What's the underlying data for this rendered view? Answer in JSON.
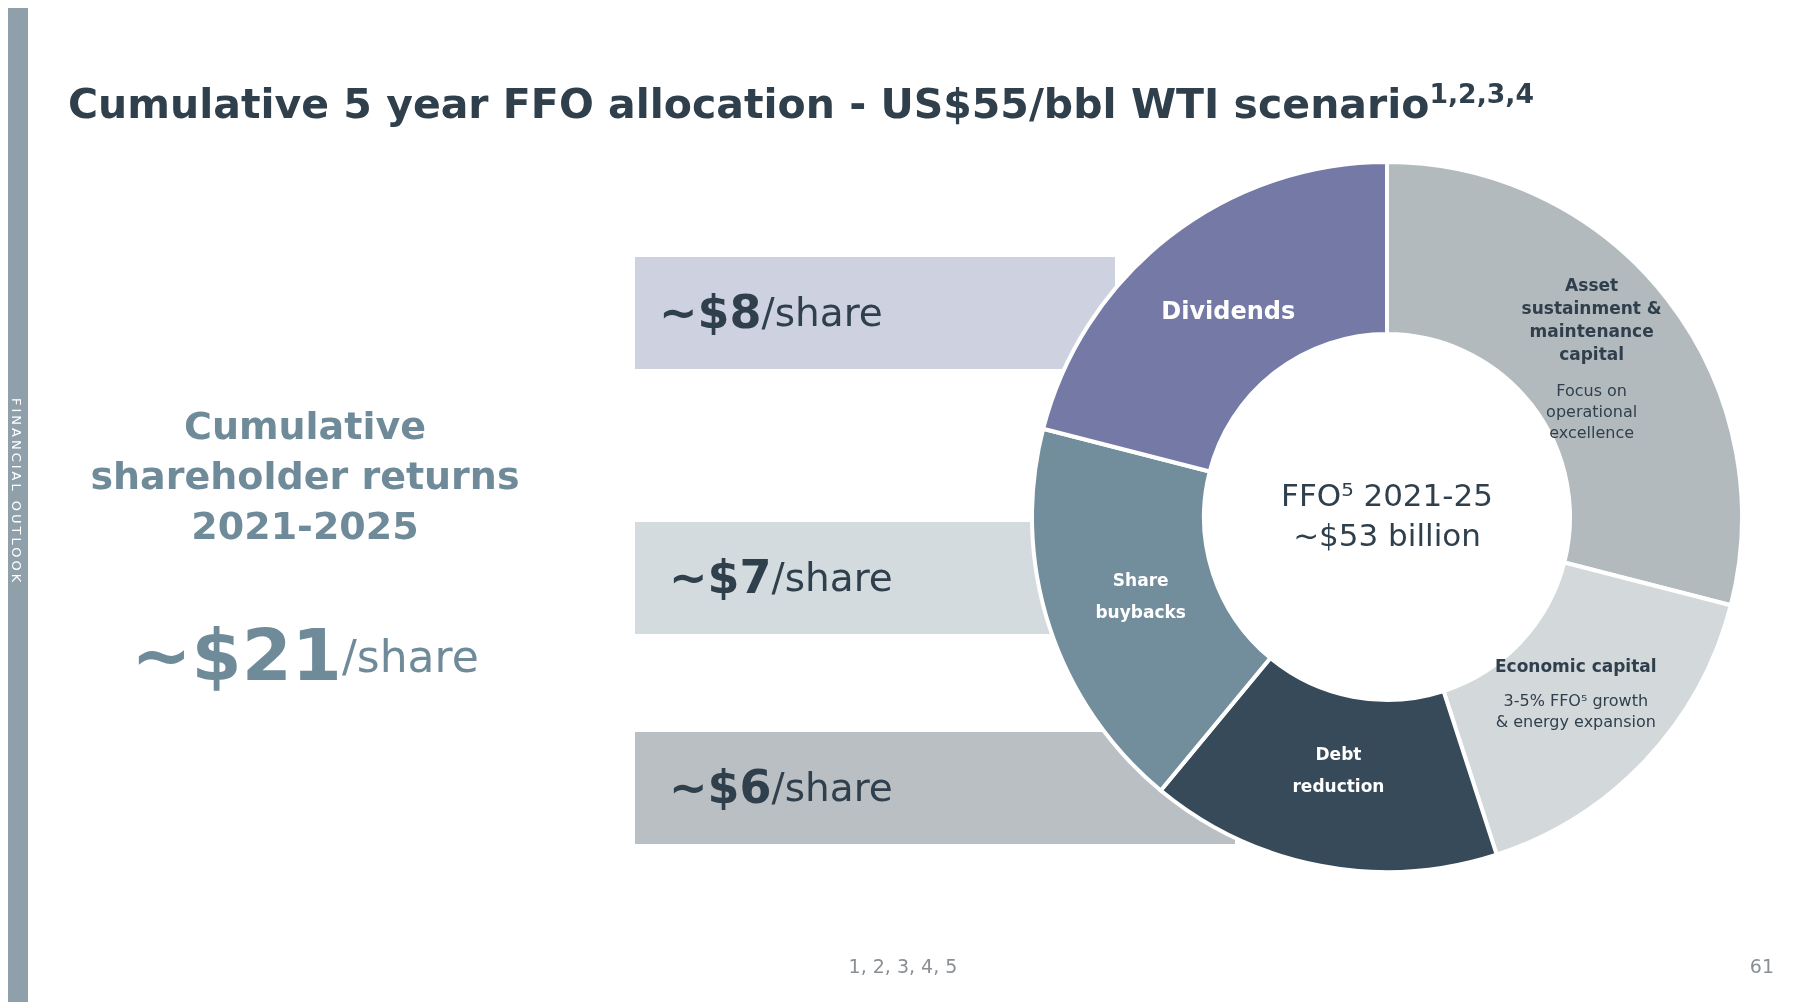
{
  "chart_data": {
    "type": "donut",
    "title": "Cumulative 5 year FFO allocation - US$55/bbl WTI scenario$^{1,2,3,4}$",
    "categories": [
      "Asset\nsustainment &\nmaintenance\ncapital",
      "Economic capital",
      "Debt\nreduction",
      "Share\nbuybacks",
      "Dividends"
    ],
    "values": [
      29,
      16,
      16,
      18,
      21
    ],
    "colors": [
      "#b3babe",
      "#d3d8db",
      "#364a5a",
      "#728d9c",
      "#7579a6"
    ],
    "annotations": [
      "Cumulative\nshareholder returns\n2021-2025",
      "~$21/share",
      "~$8/share",
      "~$7/share",
      "~$6/share",
      "FFO⁵ 2021-25\n~$53 billion",
      {
        "text": "Focus on\noperational\nexcellence",
        "x": "Asset\nsustainment &\nmaintenance\ncapital"
      },
      {
        "text": "3-5% FFO⁵ growth\n& energy expansion",
        "x": "Economic capital"
      },
      "FINANCIAL OUTLOOK",
      "1, 2, 3, 4, 5",
      "61"
    ]
  }
}
